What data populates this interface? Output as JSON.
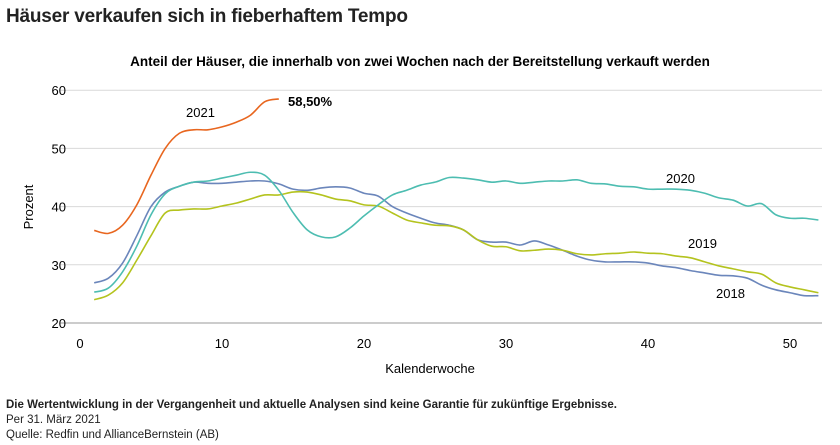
{
  "title": "Häuser verkaufen sich in fieberhaftem Tempo",
  "notes": {
    "disclaimer": "Die Wertentwicklung in der Vergangenheit und aktuelle Analysen sind keine Garantie für zukünftige Ergebnisse.",
    "date": "Per 31. März 2021",
    "source": "Quelle: Redfin und AllianceBernstein (AB)"
  },
  "chart_data": {
    "type": "line",
    "title": "Anteil der Häuser, die innerhalb von zwei Wochen nach der Bereitstellung verkauft werden",
    "xlabel": "Kalenderwoche",
    "ylabel": "Prozent",
    "xlim": [
      0,
      52
    ],
    "ylim": [
      20,
      60
    ],
    "xticks": [
      "0",
      "10",
      "20",
      "30",
      "40",
      "50"
    ],
    "yticks": [
      "20",
      "30",
      "40",
      "50",
      "60"
    ],
    "grid": "horizontal",
    "annotation": "58,50%",
    "series": [
      {
        "name": "2018",
        "color": "#6b86bb",
        "values": [
          26.9,
          27.7,
          30.3,
          35,
          40,
          42.5,
          43.5,
          44.2,
          44,
          44,
          44.2,
          44.4,
          44.4,
          43.9,
          43,
          42.8,
          43.2,
          43.4,
          43.2,
          42.3,
          41.8,
          40,
          38.9,
          38,
          37.2,
          36.8,
          36,
          34.3,
          33.9,
          33.9,
          33.4,
          34.1,
          33.4,
          32.5,
          31.5,
          30.8,
          30.5,
          30.5,
          30.5,
          30.3,
          29.8,
          29.5,
          29,
          28.6,
          28.2,
          28.1,
          27.7,
          26.5,
          25.7,
          25.2,
          24.7,
          24.7
        ]
      },
      {
        "name": "2019",
        "color": "#b4c31e",
        "values": [
          24,
          24.8,
          26.9,
          30.8,
          35,
          38.9,
          39.4,
          39.6,
          39.6,
          40.1,
          40.6,
          41.3,
          42,
          42,
          42.5,
          42.5,
          42,
          41.3,
          41,
          40.3,
          40.1,
          38.9,
          37.7,
          37.2,
          36.8,
          36.7,
          36,
          34.3,
          33.2,
          33.1,
          32.4,
          32.5,
          32.7,
          32.5,
          31.9,
          31.7,
          31.9,
          32,
          32.2,
          32,
          31.9,
          31.5,
          31.2,
          30.5,
          29.8,
          29.3,
          28.8,
          28.4,
          26.9,
          26.2,
          25.7,
          25.2
        ]
      },
      {
        "name": "2020",
        "color": "#4dbdb1",
        "values": [
          25.3,
          26,
          28.8,
          33.2,
          38.6,
          42.2,
          43.5,
          44.2,
          44.4,
          44.9,
          45.4,
          45.9,
          45.4,
          42.8,
          39,
          36,
          34.8,
          34.8,
          36.3,
          38.4,
          40.3,
          42,
          42.8,
          43.7,
          44.2,
          45,
          44.9,
          44.6,
          44.2,
          44.4,
          44,
          44.2,
          44.4,
          44.4,
          44.6,
          44,
          43.9,
          43.5,
          43.4,
          43,
          43,
          43,
          42.8,
          42.3,
          41.5,
          41.1,
          40.1,
          40.5,
          38.6,
          38,
          38,
          37.7
        ]
      },
      {
        "name": "2021",
        "color": "#e8661f",
        "values": [
          35.9,
          35.4,
          36.8,
          40.3,
          45.4,
          50,
          52.6,
          53.2,
          53.2,
          53.7,
          54.5,
          55.7,
          58,
          58.5
        ]
      }
    ]
  }
}
